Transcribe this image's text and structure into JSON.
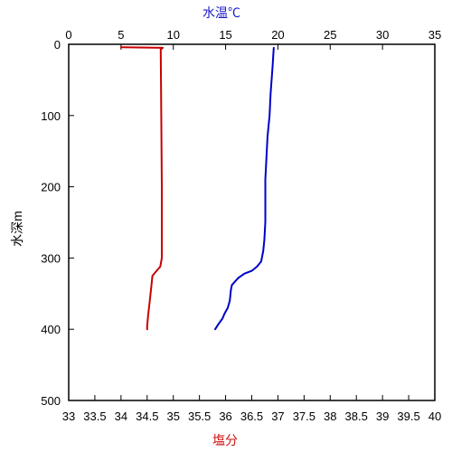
{
  "chart_data": {
    "type": "line",
    "ylabel": "水深m",
    "top_xlabel": "水温℃",
    "bottom_xlabel": "塩分",
    "y_range": [
      0,
      500
    ],
    "y_inverted": true,
    "y_ticks": [
      "0",
      "100",
      "200",
      "300",
      "400",
      "500"
    ],
    "top_x_range": [
      0,
      35
    ],
    "top_x_ticks": [
      "0",
      "5",
      "10",
      "15",
      "20",
      "25",
      "30",
      "35"
    ],
    "bottom_x_range": [
      33,
      40
    ],
    "bottom_x_ticks": [
      "33",
      "33.5",
      "34",
      "34.5",
      "35",
      "35.5",
      "36",
      "36.5",
      "37",
      "37.5",
      "38",
      "38.5",
      "39",
      "39.5",
      "40"
    ],
    "grid": false,
    "series": [
      {
        "axis": "top",
        "color": "#0000c8",
        "points": [
          [
            19.6,
            5
          ],
          [
            19.5,
            30
          ],
          [
            19.3,
            70
          ],
          [
            19.2,
            100
          ],
          [
            19.0,
            130
          ],
          [
            18.9,
            160
          ],
          [
            18.8,
            190
          ],
          [
            18.8,
            220
          ],
          [
            18.8,
            250
          ],
          [
            18.7,
            275
          ],
          [
            18.6,
            290
          ],
          [
            18.4,
            305
          ],
          [
            18.0,
            312
          ],
          [
            17.5,
            318
          ],
          [
            16.8,
            322
          ],
          [
            16.2,
            328
          ],
          [
            15.9,
            333
          ],
          [
            15.6,
            338
          ],
          [
            15.5,
            345
          ],
          [
            15.4,
            360
          ],
          [
            15.2,
            370
          ],
          [
            14.9,
            378
          ],
          [
            14.7,
            385
          ],
          [
            14.3,
            393
          ],
          [
            14.0,
            400
          ]
        ]
      },
      {
        "axis": "bottom",
        "color": "#c80000",
        "points": [
          [
            34.0,
            4
          ],
          [
            34.8,
            5
          ],
          [
            34.76,
            7
          ],
          [
            34.77,
            100
          ],
          [
            34.78,
            200
          ],
          [
            34.78,
            300
          ],
          [
            34.75,
            312
          ],
          [
            34.68,
            318
          ],
          [
            34.6,
            325
          ],
          [
            34.58,
            340
          ],
          [
            34.55,
            360
          ],
          [
            34.52,
            380
          ],
          [
            34.5,
            395
          ],
          [
            34.5,
            400
          ]
        ]
      }
    ]
  }
}
